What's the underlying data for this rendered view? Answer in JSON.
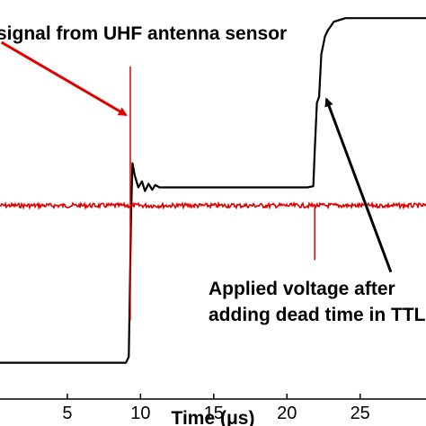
{
  "chart_data": {
    "type": "line",
    "xlabel": "Time (μs)",
    "xlim": [
      0.4,
      29.5
    ],
    "ylim": [
      -1.6,
      1.7
    ],
    "xticks": [
      5,
      10,
      15,
      20,
      25
    ],
    "xtick_labels": [
      "5",
      "10",
      "15",
      "20",
      "25"
    ],
    "grid": false,
    "series": [
      {
        "key": "applied-voltage",
        "color": "#000000",
        "points": [
          [
            0.4,
            -1.3
          ],
          [
            9.0,
            -1.3
          ],
          [
            9.2,
            -1.25
          ],
          [
            9.35,
            -0.1
          ],
          [
            9.45,
            0.35
          ],
          [
            9.6,
            0.25
          ],
          [
            9.85,
            0.15
          ],
          [
            10.1,
            0.2
          ],
          [
            10.3,
            0.12
          ],
          [
            10.55,
            0.18
          ],
          [
            10.8,
            0.13
          ],
          [
            11.0,
            0.17
          ],
          [
            11.3,
            0.15
          ],
          [
            12.0,
            0.15
          ],
          [
            21.4,
            0.15
          ],
          [
            21.8,
            0.16
          ],
          [
            21.9,
            0.45
          ],
          [
            22.05,
            0.85
          ],
          [
            22.2,
            0.9
          ],
          [
            22.35,
            1.25
          ],
          [
            22.6,
            1.4
          ],
          [
            22.8,
            1.45
          ],
          [
            23.2,
            1.52
          ],
          [
            24.0,
            1.55
          ],
          [
            29.5,
            1.55
          ]
        ]
      },
      {
        "key": "uhf-signal",
        "color": "#e00000",
        "baseline": 0,
        "spikes": [
          {
            "x": 9.3,
            "min": -0.95,
            "max": 1.15
          },
          {
            "x": 21.9,
            "min": -0.45,
            "max": 0.0
          }
        ]
      }
    ],
    "annotations": [
      {
        "key": "uhf",
        "text": "signal from UHF antenna sensor",
        "color": "#e00000",
        "arrow_from": [
          0.5,
          1.35
        ],
        "arrow_to": [
          9.0,
          0.75
        ]
      },
      {
        "key": "ttl",
        "text_lines": [
          "Applied voltage after",
          "adding dead time in TTL"
        ],
        "color": "#000000",
        "arrow_from": [
          27.1,
          -0.55
        ],
        "arrow_to": [
          22.7,
          0.88
        ]
      }
    ]
  }
}
